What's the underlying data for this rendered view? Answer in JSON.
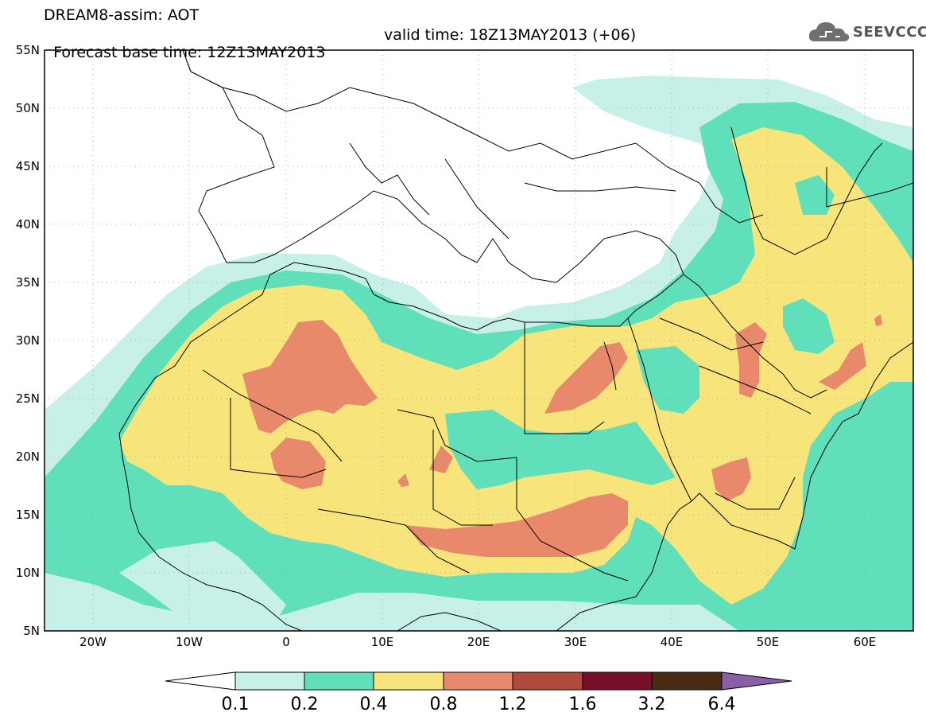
{
  "header": {
    "title_line1": "DREAM8-assim: AOT",
    "base_time": "Forecast base time: 12Z13MAY2013",
    "valid_time": "valid time: 18Z13MAY2013 (+06)",
    "logo_text": "SEEVCCC"
  },
  "map": {
    "lat_labels": [
      "55N",
      "50N",
      "45N",
      "40N",
      "35N",
      "30N",
      "25N",
      "20N",
      "15N",
      "10N",
      "5N"
    ],
    "lon_labels": [
      "20W",
      "10W",
      "0",
      "10E",
      "20E",
      "30E",
      "40E",
      "50E",
      "60E"
    ],
    "extent": {
      "lon": [
        -25,
        65
      ],
      "lat": [
        5,
        55
      ]
    },
    "projection": "cylindrical equidistant",
    "grid": "dotted 5° graticule"
  },
  "colorbar": {
    "labels": [
      "0.1",
      "0.2",
      "0.4",
      "0.8",
      "1.2",
      "1.6",
      "3.2",
      "6.4"
    ],
    "colors": [
      "#ffffff",
      "#c7f0e8",
      "#5fe0bb",
      "#f7e47a",
      "#e8896c",
      "#b04a3c",
      "#7a0f2a",
      "#4a2a15",
      "#8a5fa8"
    ]
  }
}
